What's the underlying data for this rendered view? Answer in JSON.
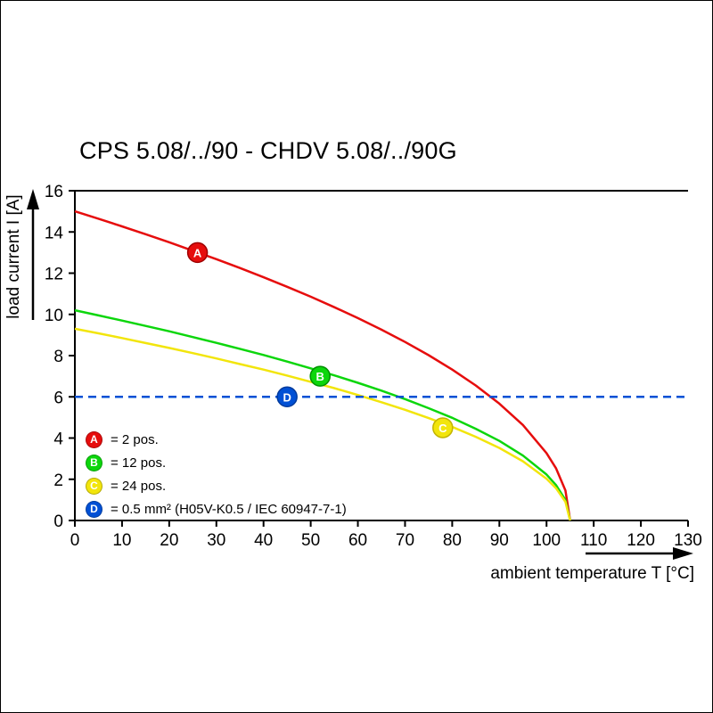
{
  "title": "CPS 5.08/../90 - CHDV 5.08/../90G",
  "chart_data": {
    "type": "line",
    "xlabel": "ambient temperature T [°C]",
    "ylabel": "load current I [A]",
    "xlim": [
      0,
      130
    ],
    "ylim": [
      0,
      16
    ],
    "x_ticks": [
      0,
      10,
      20,
      30,
      40,
      50,
      60,
      70,
      80,
      90,
      100,
      110,
      120,
      130
    ],
    "y_ticks": [
      0,
      2,
      4,
      6,
      8,
      10,
      12,
      14,
      16
    ],
    "grid": "off",
    "legend_position": "inside-bottom-left",
    "series": [
      {
        "name": "A",
        "label": "= 2 pos.",
        "color": "#e60d0d",
        "border": "#9e0000",
        "dashed": false,
        "marker": {
          "x": 26,
          "y": 13
        },
        "points": [
          [
            0,
            15.0
          ],
          [
            5,
            14.64
          ],
          [
            10,
            14.27
          ],
          [
            15,
            13.89
          ],
          [
            20,
            13.5
          ],
          [
            25,
            13.09
          ],
          [
            30,
            12.68
          ],
          [
            35,
            12.25
          ],
          [
            40,
            11.8
          ],
          [
            45,
            11.34
          ],
          [
            50,
            10.86
          ],
          [
            55,
            10.35
          ],
          [
            60,
            9.82
          ],
          [
            65,
            9.26
          ],
          [
            70,
            8.66
          ],
          [
            75,
            8.02
          ],
          [
            80,
            7.32
          ],
          [
            85,
            6.55
          ],
          [
            90,
            5.67
          ],
          [
            95,
            4.63
          ],
          [
            100,
            3.27
          ],
          [
            102,
            2.54
          ],
          [
            104,
            1.46
          ],
          [
            105,
            0
          ]
        ]
      },
      {
        "name": "B",
        "label": "= 12 pos.",
        "color": "#0cd60c",
        "border": "#009000",
        "dashed": false,
        "marker": {
          "x": 52,
          "y": 7
        },
        "points": [
          [
            0,
            10.2
          ],
          [
            5,
            9.95
          ],
          [
            10,
            9.7
          ],
          [
            15,
            9.44
          ],
          [
            20,
            9.18
          ],
          [
            25,
            8.9
          ],
          [
            30,
            8.62
          ],
          [
            35,
            8.33
          ],
          [
            40,
            8.03
          ],
          [
            45,
            7.71
          ],
          [
            50,
            7.38
          ],
          [
            55,
            7.04
          ],
          [
            60,
            6.68
          ],
          [
            65,
            6.3
          ],
          [
            70,
            5.89
          ],
          [
            75,
            5.45
          ],
          [
            80,
            4.98
          ],
          [
            85,
            4.45
          ],
          [
            90,
            3.86
          ],
          [
            95,
            3.15
          ],
          [
            100,
            2.23
          ],
          [
            102,
            1.72
          ],
          [
            104,
            1.0
          ],
          [
            105,
            0
          ]
        ]
      },
      {
        "name": "C",
        "label": "= 24 pos.",
        "color": "#f2e50c",
        "border": "#c2b400",
        "dashed": false,
        "marker": {
          "x": 78,
          "y": 4.5
        },
        "points": [
          [
            0,
            9.3
          ],
          [
            5,
            9.08
          ],
          [
            10,
            8.85
          ],
          [
            15,
            8.61
          ],
          [
            20,
            8.37
          ],
          [
            25,
            8.12
          ],
          [
            30,
            7.86
          ],
          [
            35,
            7.59
          ],
          [
            40,
            7.32
          ],
          [
            45,
            7.03
          ],
          [
            50,
            6.73
          ],
          [
            55,
            6.42
          ],
          [
            60,
            6.09
          ],
          [
            65,
            5.74
          ],
          [
            70,
            5.37
          ],
          [
            75,
            4.97
          ],
          [
            80,
            4.54
          ],
          [
            85,
            4.06
          ],
          [
            90,
            3.52
          ],
          [
            95,
            2.87
          ],
          [
            100,
            2.03
          ],
          [
            102,
            1.57
          ],
          [
            104,
            0.91
          ],
          [
            105,
            0
          ]
        ]
      },
      {
        "name": "D",
        "label": "= 0.5 mm² (H05V-K0.5 / IEC 60947-7-1)",
        "color": "#0050d5",
        "border": "#003a9c",
        "dashed": true,
        "marker": {
          "x": 45,
          "y": 6
        },
        "points": [
          [
            0,
            6
          ],
          [
            130,
            6
          ]
        ]
      }
    ]
  }
}
